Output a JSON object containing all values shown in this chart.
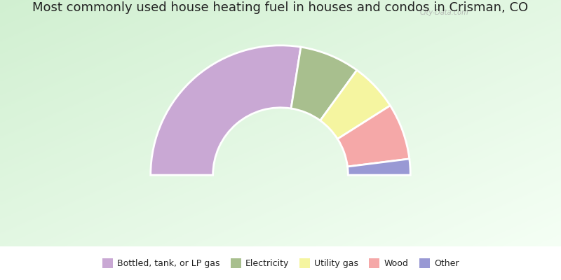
{
  "title": "Most commonly used house heating fuel in houses and condos in Crisman, CO",
  "title_fontsize": 13,
  "segments": [
    {
      "label": "Bottled, tank, or LP gas",
      "value": 55,
      "color": "#c9a8d4"
    },
    {
      "label": "Electricity",
      "value": 15,
      "color": "#a8bf8e"
    },
    {
      "label": "Utility gas",
      "value": 12,
      "color": "#f5f5a0"
    },
    {
      "label": "Wood",
      "value": 14,
      "color": "#f5a8a8"
    },
    {
      "label": "Other",
      "value": 4,
      "color": "#9999d4"
    }
  ],
  "bg_color_topleft": [
    0.82,
    0.94,
    0.82
  ],
  "bg_color_bottomright": [
    0.96,
    1.0,
    0.96
  ],
  "bottom_bar_color": "#00ffff",
  "legend_fontsize": 9,
  "watermark": "City-Data.com"
}
